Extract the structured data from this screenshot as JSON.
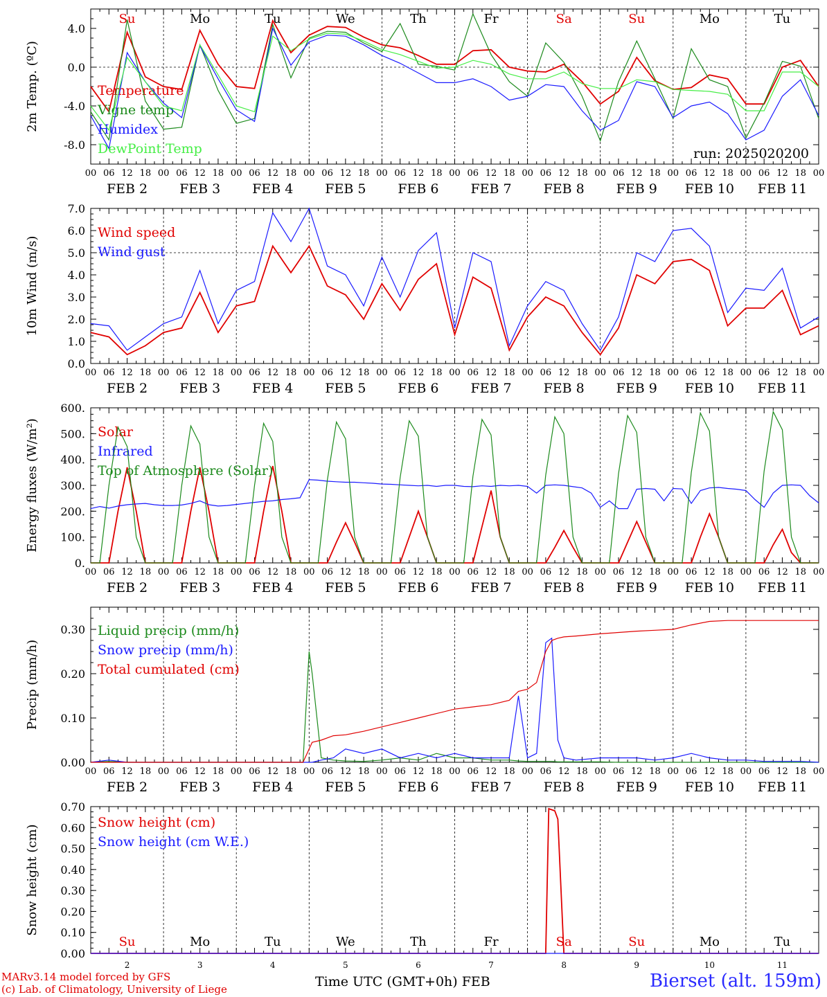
{
  "chart_data": [
    {
      "type": "line",
      "ylabel": "2m Temp. (ºC)",
      "ylim": [
        -10,
        6
      ],
      "yticks": [
        4,
        0,
        -4,
        -8
      ],
      "ytick_labels": [
        "4.0",
        "0.0",
        "-4.0",
        "-8.0"
      ],
      "x_hours": [
        0,
        6,
        12,
        18,
        24,
        30,
        36,
        42,
        48,
        54,
        60,
        66,
        72,
        78,
        84,
        90,
        96,
        102,
        108,
        114,
        120,
        126,
        132,
        138,
        144,
        150,
        156,
        162,
        168,
        174,
        180,
        186,
        192,
        198,
        204,
        210,
        216,
        222,
        228,
        234,
        240
      ],
      "series": [
        {
          "name": "Temperature",
          "color": "#e00000",
          "values": [
            -2,
            -4.6,
            3.6,
            -1,
            -2,
            -2.3,
            3.8,
            0.3,
            -2,
            -2.2,
            4.8,
            1.5,
            3.3,
            4.2,
            4.1,
            3.1,
            2.3,
            2,
            1.2,
            0.3,
            0.3,
            1.7,
            1.8,
            0,
            -0.4,
            -0.5,
            0.3,
            -1.5,
            -3.8,
            -2.5,
            1,
            -1.4,
            -2.3,
            -2.1,
            -0.8,
            -1.2,
            -3.8,
            -3.8,
            0,
            0.7,
            -2
          ]
        },
        {
          "name": "Vigne temp",
          "color": "#1c8a1c",
          "values": [
            -4.6,
            -7.5,
            4.9,
            -3.5,
            -6.4,
            -6.2,
            2.3,
            -2.4,
            -5.8,
            -5.3,
            4.4,
            -1.1,
            3,
            3.7,
            3.6,
            2.5,
            1.6,
            4.5,
            0.3,
            0.1,
            -0.3,
            5.5,
            1.3,
            -1.5,
            -3,
            2.5,
            0.5,
            -3,
            -7.6,
            -1.5,
            2.7,
            -1.2,
            -5.3,
            1.9,
            -1.3,
            -2,
            -7.3,
            -3.7,
            0.6,
            0.1,
            -5.3
          ]
        },
        {
          "name": "Humidex",
          "color": "#1a1aff",
          "values": [
            -5,
            -8.4,
            1.5,
            -1.5,
            -3.7,
            -5.2,
            2.2,
            -1.2,
            -4.4,
            -5.6,
            4,
            0.2,
            2.6,
            3.3,
            3.2,
            2.3,
            1.2,
            0.4,
            -0.6,
            -1.6,
            -1.6,
            -1.2,
            -2,
            -3.4,
            -3,
            -1.8,
            -2,
            -4.5,
            -6.5,
            -5.5,
            -1.5,
            -2,
            -5.2,
            -4,
            -3.6,
            -4.8,
            -7.5,
            -6.5,
            -3,
            -1.3,
            -5
          ]
        },
        {
          "name": "DewPoint Temp",
          "color": "#44ee44",
          "values": [
            -4,
            -6.5,
            1,
            -1.5,
            -4,
            -4.5,
            2.3,
            -0.8,
            -4,
            -4.6,
            3.2,
            1.7,
            2.9,
            3.5,
            3.4,
            2.7,
            1.8,
            1.3,
            0.6,
            -0.1,
            0,
            0.7,
            0.3,
            -0.7,
            -1.2,
            -1.2,
            -0.5,
            -1.7,
            -2.2,
            -2.2,
            -1.3,
            -1.5,
            -2.3,
            -2.4,
            -2.5,
            -2.8,
            -4.5,
            -4.5,
            -0.5,
            -0.5,
            -2
          ]
        }
      ],
      "day_labels": [
        "Su",
        "Mo",
        "Tu",
        "We",
        "Th",
        "Fr",
        "Sa",
        "Su",
        "Mo",
        "Tu"
      ],
      "run_label": "run: 2025020200"
    },
    {
      "type": "line",
      "ylabel": "10m Wind (m/s)",
      "ylim": [
        0,
        7
      ],
      "yticks": [
        0,
        1,
        2,
        3,
        4,
        5,
        6,
        7
      ],
      "ytick_labels": [
        "0.0",
        "1.0",
        "2.0",
        "3.0",
        "4.0",
        "5.0",
        "6.0",
        "7.0"
      ],
      "x_hours": [
        0,
        6,
        12,
        18,
        24,
        30,
        36,
        42,
        48,
        54,
        60,
        66,
        72,
        78,
        84,
        90,
        96,
        102,
        108,
        114,
        120,
        126,
        132,
        138,
        144,
        150,
        156,
        162,
        168,
        174,
        180,
        186,
        192,
        198,
        204,
        210,
        216,
        222,
        228,
        234,
        240
      ],
      "series": [
        {
          "name": "Wind speed",
          "color": "#e00000",
          "values": [
            1.4,
            1.2,
            0.4,
            0.8,
            1.4,
            1.6,
            3.2,
            1.4,
            2.6,
            2.8,
            5.3,
            4.1,
            5.3,
            3.5,
            3.1,
            2,
            3.6,
            2.4,
            3.8,
            4.5,
            1.3,
            3.9,
            3.4,
            0.6,
            2.1,
            3,
            2.6,
            1.4,
            0.4,
            1.6,
            4,
            3.6,
            4.6,
            4.7,
            4.2,
            1.7,
            2.5,
            2.5,
            3.3,
            1.3,
            1.7
          ]
        },
        {
          "name": "Wind gust",
          "color": "#1a1aff",
          "values": [
            1.8,
            1.7,
            0.6,
            1.2,
            1.8,
            2.1,
            4.2,
            1.8,
            3.3,
            3.7,
            6.8,
            5.5,
            7,
            4.4,
            4,
            2.6,
            4.8,
            3,
            5.1,
            5.9,
            1.6,
            5,
            4.6,
            0.8,
            2.6,
            3.7,
            3.3,
            1.8,
            0.6,
            2.1,
            5,
            4.6,
            6,
            6.1,
            5.3,
            2.3,
            3.4,
            3.3,
            4.3,
            1.6,
            2.1
          ]
        }
      ],
      "reference_line": 5
    },
    {
      "type": "line",
      "ylabel": "Energy fluxes (W/m²)",
      "ylim": [
        0,
        600
      ],
      "yticks": [
        0,
        100,
        200,
        300,
        400,
        500,
        600
      ],
      "ytick_labels": [
        "0.",
        "100.",
        "200.",
        "300.",
        "400.",
        "500.",
        "600."
      ],
      "x_hours": [
        0,
        3,
        6,
        9,
        12,
        15,
        18,
        21,
        24,
        27,
        30,
        33,
        36,
        39,
        42,
        45,
        48,
        51,
        54,
        57,
        60,
        63,
        66,
        69,
        72,
        75,
        78,
        81,
        84,
        87,
        90,
        93,
        96,
        99,
        102,
        105,
        108,
        111,
        114,
        117,
        120,
        123,
        126,
        129,
        132,
        135,
        138,
        141,
        144,
        147,
        150,
        153,
        156,
        159,
        162,
        165,
        168,
        171,
        174,
        177,
        180,
        183,
        186,
        189,
        192,
        195,
        198,
        201,
        204,
        207,
        210,
        213,
        216,
        219,
        222,
        225,
        228,
        231,
        234,
        237,
        240
      ],
      "series": [
        {
          "name": "Solar",
          "color": "#e00000",
          "values": [
            0,
            0,
            0,
            200,
            370,
            200,
            0,
            0,
            0,
            0,
            0,
            200,
            370,
            200,
            0,
            0,
            0,
            0,
            0,
            200,
            375,
            200,
            0,
            0,
            0,
            0,
            0,
            80,
            155,
            80,
            0,
            0,
            0,
            0,
            0,
            100,
            200,
            100,
            0,
            0,
            0,
            0,
            0,
            140,
            280,
            100,
            0,
            0,
            0,
            0,
            0,
            60,
            125,
            60,
            0,
            0,
            0,
            0,
            0,
            80,
            160,
            80,
            0,
            0,
            0,
            0,
            0,
            100,
            190,
            100,
            0,
            0,
            0,
            0,
            0,
            70,
            130,
            40,
            0,
            0,
            0
          ]
        },
        {
          "name": "Infrared",
          "color": "#1a1aff",
          "values": [
            210,
            218,
            212,
            220,
            225,
            228,
            230,
            225,
            222,
            222,
            224,
            230,
            240,
            225,
            220,
            222,
            226,
            230,
            234,
            238,
            240,
            245,
            248,
            252,
            322,
            320,
            316,
            314,
            312,
            312,
            310,
            308,
            305,
            304,
            302,
            300,
            298,
            300,
            296,
            300,
            300,
            296,
            295,
            298,
            296,
            300,
            298,
            300,
            296,
            270,
            300,
            302,
            300,
            295,
            290,
            270,
            215,
            240,
            210,
            210,
            285,
            288,
            285,
            240,
            288,
            286,
            230,
            280,
            290,
            292,
            288,
            285,
            280,
            245,
            215,
            270,
            300,
            302,
            300,
            260,
            232
          ]
        },
        {
          "name": "Top of Atmosphere (Solar)",
          "color": "#1c8a1c",
          "values": [
            0,
            0,
            300,
            525,
            450,
            100,
            0,
            0,
            0,
            0,
            300,
            530,
            460,
            100,
            0,
            0,
            0,
            0,
            300,
            540,
            470,
            100,
            0,
            0,
            0,
            0,
            320,
            545,
            480,
            100,
            0,
            0,
            0,
            0,
            330,
            550,
            490,
            100,
            0,
            0,
            0,
            0,
            335,
            555,
            495,
            100,
            0,
            0,
            0,
            0,
            340,
            565,
            500,
            100,
            0,
            0,
            0,
            0,
            345,
            570,
            505,
            100,
            0,
            0,
            0,
            0,
            350,
            580,
            510,
            100,
            0,
            0,
            0,
            0,
            355,
            585,
            515,
            100,
            0,
            0,
            0
          ]
        }
      ]
    },
    {
      "type": "line",
      "ylabel": "Precip (mm/h)",
      "ylim": [
        0,
        0.35
      ],
      "yticks": [
        0,
        0.1,
        0.2,
        0.3
      ],
      "ytick_labels": [
        "0.00",
        "0.10",
        "0.20",
        "0.30"
      ],
      "x_hours": [
        0,
        6,
        12,
        18,
        24,
        30,
        36,
        42,
        48,
        54,
        60,
        66,
        70,
        72,
        73,
        76,
        80,
        84,
        90,
        96,
        102,
        108,
        114,
        120,
        126,
        132,
        138,
        141,
        144,
        147,
        150,
        152,
        154,
        156,
        160,
        168,
        174,
        180,
        186,
        192,
        198,
        204,
        210,
        216,
        222,
        228,
        234,
        240
      ],
      "series": [
        {
          "name": "Liquid precip (mm/h)",
          "color": "#1c8a1c",
          "values": [
            0,
            0.002,
            0,
            0,
            0,
            0,
            0,
            0,
            0,
            0,
            0,
            0,
            0,
            0.25,
            0.2,
            0.01,
            0.005,
            0.003,
            0.002,
            0.005,
            0.01,
            0.005,
            0.02,
            0.01,
            0.01,
            0.005,
            0.005,
            0.003,
            0.002,
            0.002,
            0.002,
            0.002,
            0.001,
            0.001,
            0.001,
            0.001,
            0,
            0,
            0,
            0,
            0,
            0,
            0,
            0,
            0,
            0,
            0,
            0
          ]
        },
        {
          "name": "Snow precip (mm/h)",
          "color": "#1a1aff",
          "values": [
            0,
            0.005,
            0,
            0,
            0,
            0,
            0,
            0,
            0,
            0,
            0,
            0,
            0,
            0,
            0,
            0.005,
            0.01,
            0.03,
            0.02,
            0.03,
            0.01,
            0.02,
            0.01,
            0.02,
            0.01,
            0.01,
            0.01,
            0.15,
            0.01,
            0.02,
            0.27,
            0.28,
            0.05,
            0.01,
            0.005,
            0.01,
            0.01,
            0.01,
            0.005,
            0.01,
            0.02,
            0.01,
            0.005,
            0.005,
            0.002,
            0.002,
            0.002,
            0
          ]
        },
        {
          "name": "Total cumulated (cm)",
          "color": "#e00000",
          "values": [
            0,
            0,
            0,
            0,
            0,
            0,
            0,
            0,
            0,
            0,
            0,
            0,
            0,
            0.03,
            0.045,
            0.05,
            0.06,
            0.062,
            0.07,
            0.08,
            0.09,
            0.1,
            0.11,
            0.12,
            0.125,
            0.13,
            0.14,
            0.16,
            0.165,
            0.18,
            0.25,
            0.275,
            0.28,
            0.283,
            0.285,
            0.29,
            0.293,
            0.296,
            0.298,
            0.3,
            0.31,
            0.318,
            0.32,
            0.32,
            0.32,
            0.32,
            0.32,
            0.32
          ]
        }
      ]
    },
    {
      "type": "line",
      "ylabel": "Snow height (cm)",
      "ylim": [
        0,
        0.7
      ],
      "yticks": [
        0,
        0.1,
        0.2,
        0.3,
        0.4,
        0.5,
        0.6,
        0.7
      ],
      "ytick_labels": [
        "0.00",
        "0.10",
        "0.20",
        "0.30",
        "0.40",
        "0.50",
        "0.60",
        "0.70"
      ],
      "x_hours": [
        0,
        60,
        120,
        150,
        151,
        153,
        154,
        156,
        240
      ],
      "series": [
        {
          "name": "Snow height (cm)",
          "color": "#e00000",
          "values": [
            0,
            0,
            0,
            0,
            0.69,
            0.68,
            0.64,
            0,
            0
          ]
        },
        {
          "name": "Snow height (cm W.E.)",
          "color": "#1a1aff",
          "values": [
            0,
            0,
            0,
            0,
            0,
            0,
            0,
            0,
            0
          ]
        }
      ],
      "xlabel": "Time UTC (GMT+0h) FEB",
      "day_numbers": [
        "2",
        "3",
        "4",
        "5",
        "6",
        "7",
        "8",
        "9",
        "10",
        "11"
      ]
    }
  ],
  "x_axis": {
    "hour_labels": [
      "00",
      "06",
      "12",
      "18"
    ],
    "end_label": "00",
    "day_labels": [
      "FEB 2",
      "FEB 3",
      "FEB 4",
      "FEB 5",
      "FEB 6",
      "FEB 7",
      "FEB 8",
      "FEB 9",
      "FEB 10",
      "FEB 11"
    ],
    "weekday_labels": [
      "Su",
      "Mo",
      "Tu",
      "We",
      "Th",
      "Fr",
      "Sa",
      "Su",
      "Mo",
      "Tu"
    ],
    "weekday_colors": [
      "#e00000",
      "#000000",
      "#000000",
      "#000000",
      "#000000",
      "#000000",
      "#e00000",
      "#e00000",
      "#000000",
      "#000000"
    ]
  },
  "footer": {
    "model_line": "MARv3.14 model forced by GFS",
    "credit_line": "(c) Lab. of Climatology, University of Liege",
    "station": "Bierset (alt. 159m)",
    "xlabel": "Time UTC (GMT+0h) FEB"
  }
}
